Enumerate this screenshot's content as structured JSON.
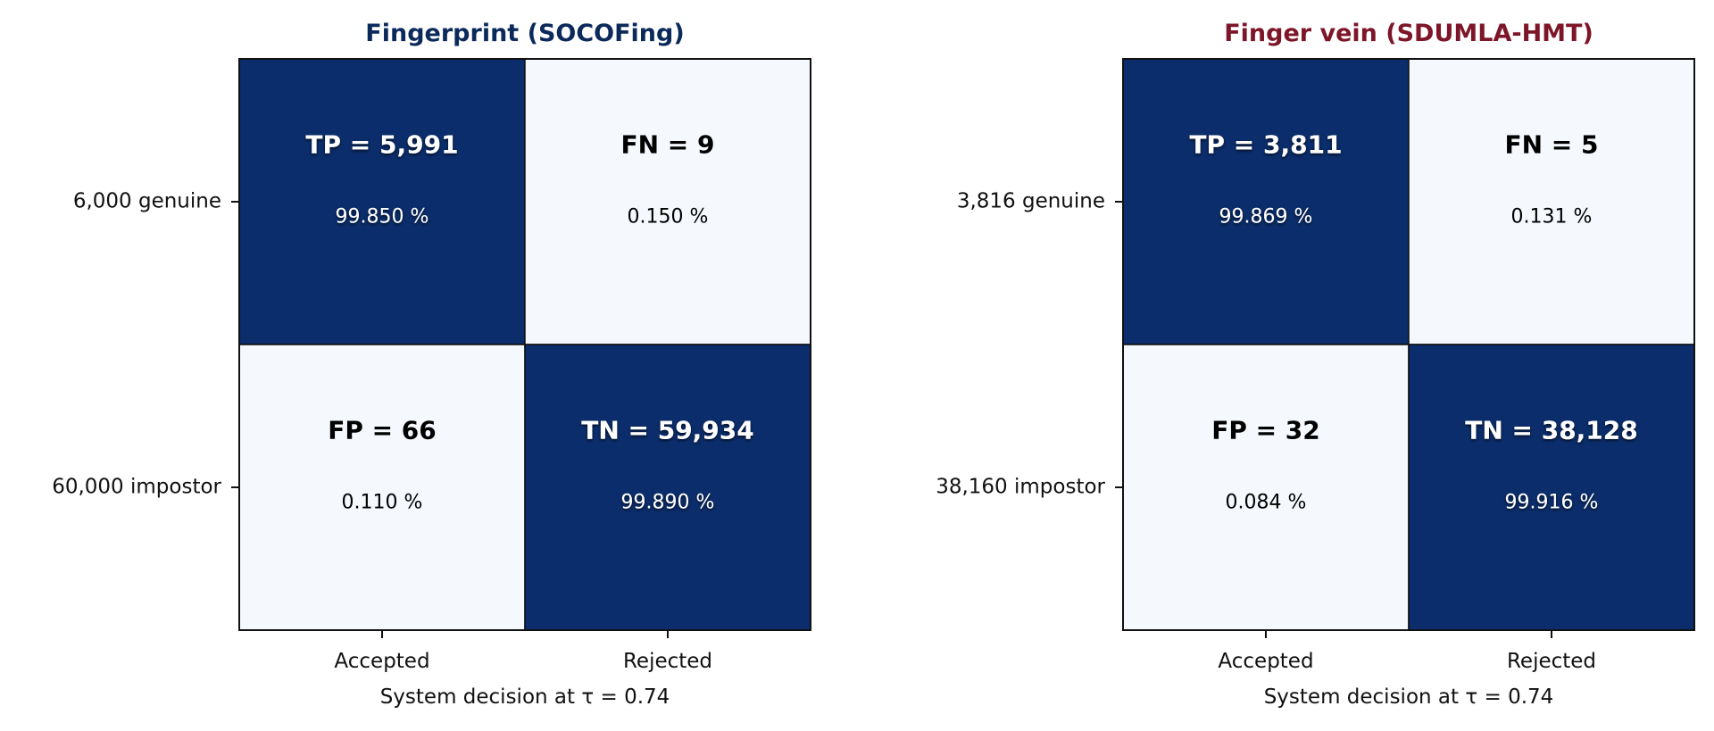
{
  "chart_data": [
    {
      "type": "heatmap",
      "title": "Fingerprint  (SOCOFing)",
      "title_color": "#0b2a5b",
      "xlabel": "System decision at  τ = 0.74",
      "x_categories": [
        "Accepted",
        "Rejected"
      ],
      "y_categories": [
        "6,000 genuine",
        "60,000 impostor"
      ],
      "cells": [
        [
          {
            "label": "TP = 5,991",
            "value": 5991,
            "pct_text": "99.850 %",
            "pct": 99.85
          },
          {
            "label": "FN = 9",
            "value": 9,
            "pct_text": "0.150 %",
            "pct": 0.15
          }
        ],
        [
          {
            "label": "FP = 66",
            "value": 66,
            "pct_text": "0.110 %",
            "pct": 0.11
          },
          {
            "label": "TN = 59,934",
            "value": 59934,
            "pct_text": "99.890 %",
            "pct": 99.89
          }
        ]
      ]
    },
    {
      "type": "heatmap",
      "title": "Finger vein  (SDUMLA-HMT)",
      "title_color": "#7d1628",
      "xlabel": "System decision at  τ = 0.74",
      "x_categories": [
        "Accepted",
        "Rejected"
      ],
      "y_categories": [
        "3,816 genuine",
        "38,160 impostor"
      ],
      "cells": [
        [
          {
            "label": "TP = 3,811",
            "value": 3811,
            "pct_text": "99.869 %",
            "pct": 99.869
          },
          {
            "label": "FN = 5",
            "value": 5,
            "pct_text": "0.131 %",
            "pct": 0.131
          }
        ],
        [
          {
            "label": "FP = 32",
            "value": 32,
            "pct_text": "0.084 %",
            "pct": 0.084
          },
          {
            "label": "TN = 38,128",
            "value": 38128,
            "pct_text": "99.916 %",
            "pct": 99.916
          }
        ]
      ]
    }
  ],
  "colors": {
    "high": "#0b2d6b",
    "low": "#f5f9fd",
    "frame": "#111111",
    "text_dark": "#000000",
    "text_light": "#ffffff"
  }
}
